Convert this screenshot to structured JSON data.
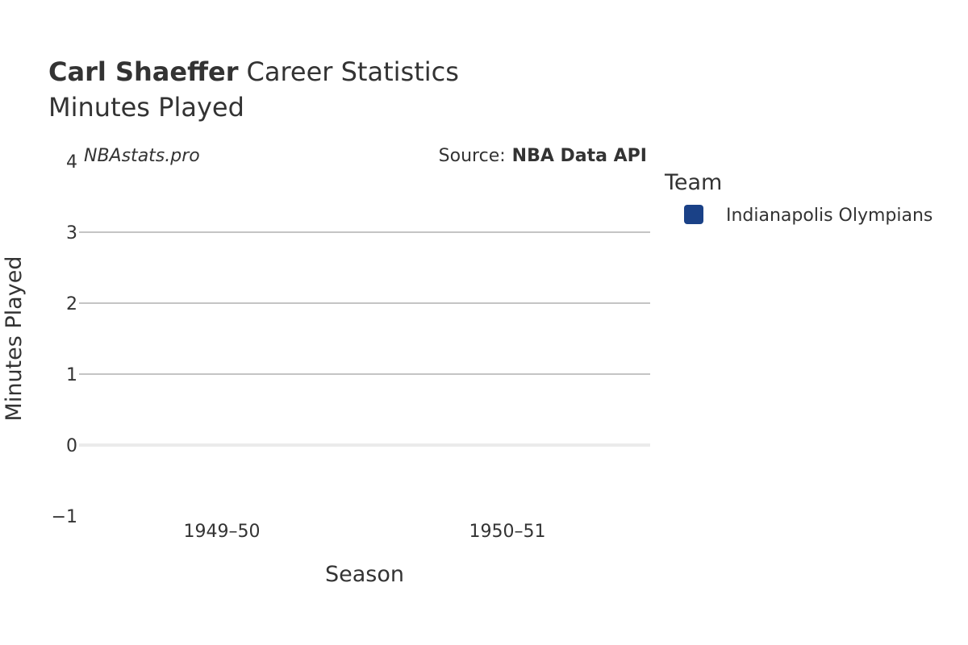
{
  "title": {
    "player": "Carl Shaeffer",
    "rest": "Career Statistics",
    "subtitle": "Minutes Played"
  },
  "watermark": "NBAstats.pro",
  "source": {
    "prefix": "Source:",
    "name": "NBA Data API"
  },
  "legend": {
    "title": "Team",
    "items": [
      {
        "label": "Indianapolis Olympians",
        "color": "#1a4187"
      }
    ]
  },
  "chart_data": {
    "type": "bar",
    "title": "Carl Shaeffer Career Statistics",
    "subtitle": "Minutes Played",
    "xlabel": "Season",
    "ylabel": "Minutes Played",
    "categories": [
      "1949–50",
      "1950–51"
    ],
    "series": [
      {
        "name": "Indianapolis Olympians",
        "values": [
          0,
          0
        ]
      }
    ],
    "ylim": [
      -1,
      4
    ],
    "yticks": [
      -1,
      0,
      1,
      2,
      3,
      4
    ],
    "ytick_labels": [
      "−1",
      "0",
      "1",
      "2",
      "3",
      "4"
    ],
    "grid": true,
    "legend_position": "right"
  }
}
